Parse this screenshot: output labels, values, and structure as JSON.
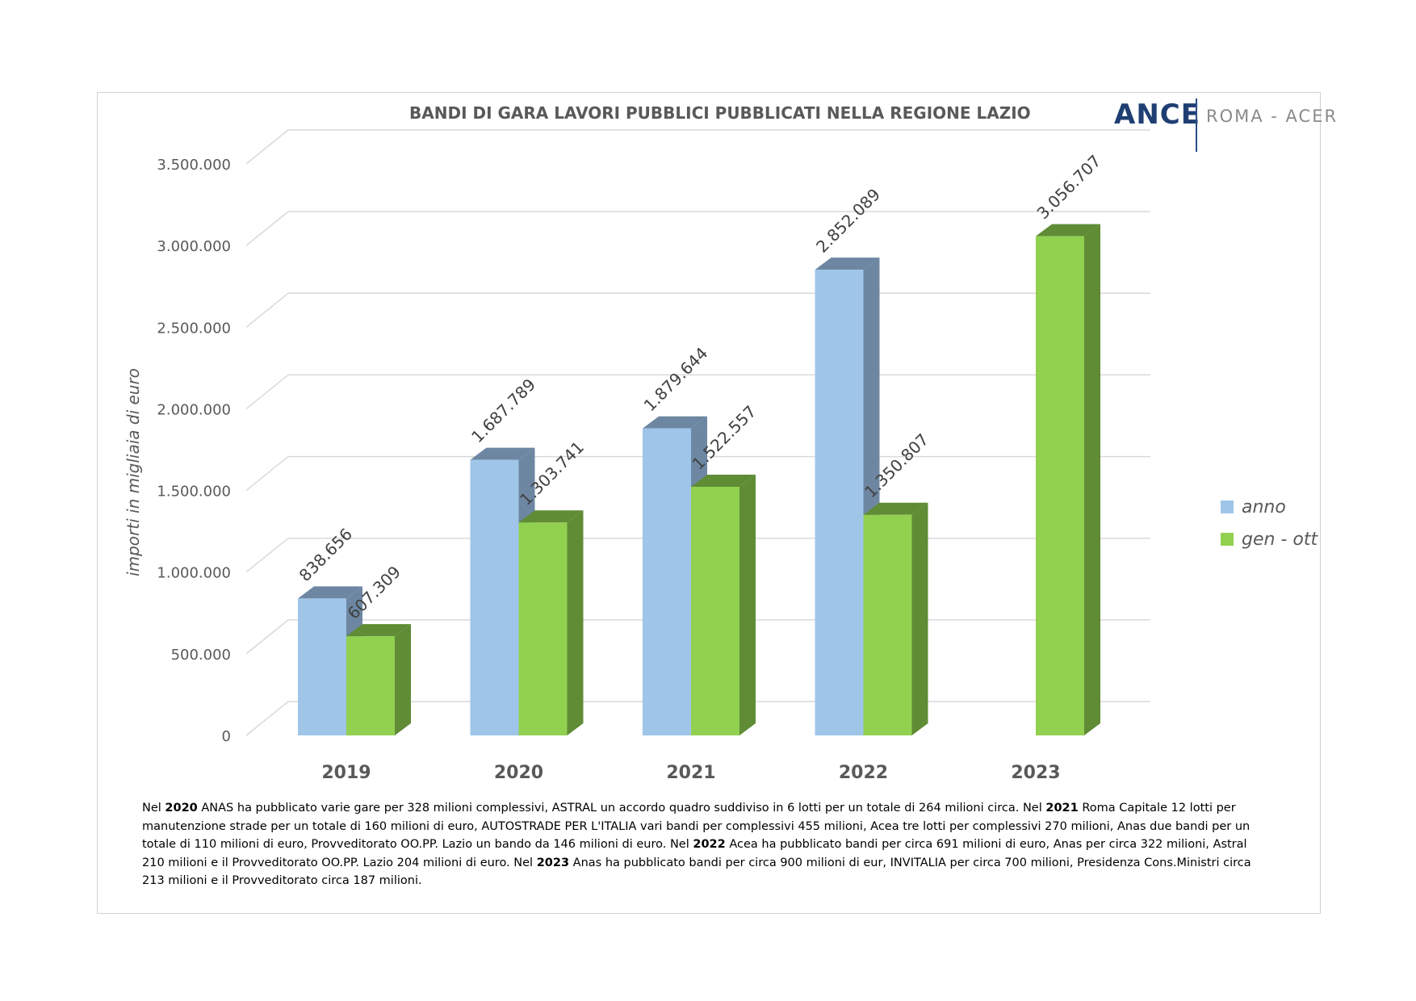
{
  "chart_data": {
    "type": "bar",
    "title": "BANDI DI GARA LAVORI PUBBLICI PUBBLICATI NELLA REGIONE LAZIO",
    "ylabel": "importi in migliaia di euro",
    "categories": [
      "2019",
      "2020",
      "2021",
      "2022",
      "2023"
    ],
    "series": [
      {
        "name": "anno",
        "values": [
          838656,
          1687789,
          1879644,
          2852089,
          null
        ],
        "labels": [
          "838.656",
          "1.687.789",
          "1.879.644",
          "2.852.089",
          ""
        ],
        "color": "#9fc5e8",
        "color_side": "#6d87a3"
      },
      {
        "name": "gen - ott",
        "values": [
          607309,
          1303741,
          1522557,
          1350807,
          3056707
        ],
        "labels": [
          "607.309",
          "1.303.741",
          "1.522.557",
          "1.350.807",
          "3.056.707"
        ],
        "color": "#92d050",
        "color_side": "#5f8c34"
      }
    ],
    "ylim": [
      0,
      3500000
    ],
    "yticks": [
      0,
      500000,
      1000000,
      1500000,
      2000000,
      2500000,
      3000000,
      3500000
    ],
    "ytick_labels": [
      "0",
      "500.000",
      "1.000.000",
      "1.500.000",
      "2.000.000",
      "2.500.000",
      "3.000.000",
      "3.500.000"
    ],
    "grid": true,
    "style": "3d",
    "legend_position": "right"
  },
  "logo": {
    "brand": "ANCE",
    "subtitle": "ROMA - ACER"
  },
  "notes": [
    {
      "t": " Nel "
    },
    {
      "t": "2020",
      "b": true
    },
    {
      "t": " ANAS ha pubblicato varie gare per 328 milioni complessivi, ASTRAL un accordo quadro suddiviso in 6 lotti per un totale di 264 milioni circa. Nel "
    },
    {
      "t": "2021",
      "b": true
    },
    {
      "t": " Roma Capitale 12 lotti per manutenzione strade per un totale di 160 milioni di euro, AUTOSTRADE PER L'ITALIA vari bandi per complessivi 455 milioni, Acea tre lotti per complessivi  270 milioni, Anas due bandi per un totale di 110 milioni di euro, Provveditorato OO.PP. Lazio un bando da 146 milioni di euro. Nel "
    },
    {
      "t": "2022",
      "b": true
    },
    {
      "t": " Acea ha pubblicato bandi per circa 691 milioni di euro, Anas per circa 322 milioni, Astral 210 milioni e il Provveditorato OO.PP. Lazio 204 milioni di euro. Nel "
    },
    {
      "t": "2023",
      "b": true
    },
    {
      "t": " Anas ha pubblicato bandi per circa 900 milioni di eur, INVITALIA per circa 700 milioni, Presidenza Cons.Ministri circa 213 milioni e il Provveditorato circa 187 milioni."
    }
  ]
}
